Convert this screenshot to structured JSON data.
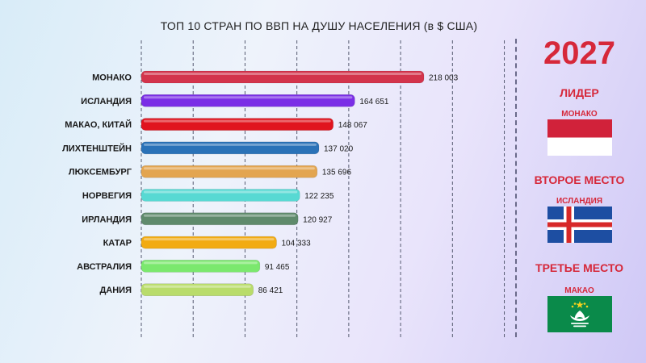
{
  "chart_data": {
    "type": "bar",
    "orientation": "horizontal",
    "title": "ТОП 10 СТРАН ПО ВВП НА ДУШУ НАСЕЛЕНИЯ (в $ США)",
    "categories": [
      "МОНАКО",
      "ИСЛАНДИЯ",
      "МАКАО, КИТАЙ",
      "ЛИХТЕНШТЕЙН",
      "ЛЮКСЕМБУРГ",
      "НОРВЕГИЯ",
      "ИРЛАНДИЯ",
      "КАТАР",
      "АВСТРАЛИЯ",
      "ДАНИЯ"
    ],
    "values": [
      218003,
      164651,
      148067,
      137020,
      135696,
      122235,
      120927,
      104333,
      91465,
      86421
    ],
    "value_labels": [
      "218 003",
      "164 651",
      "148 067",
      "137 020",
      "135 696",
      "122 235",
      "120 927",
      "104 333",
      "91 465",
      "86 421"
    ],
    "colors": [
      "#d3344c",
      "#7a2ee6",
      "#e0141e",
      "#2a72b8",
      "#e3a550",
      "#57d9d3",
      "#5f8a6c",
      "#f2ab12",
      "#7be86e",
      "#b9dc6b"
    ],
    "xlim": [
      0,
      300000
    ],
    "grid": true
  },
  "sidebar": {
    "year": "2027",
    "places": [
      {
        "heading": "ЛИДЕР",
        "country": "МОНАКО",
        "flag": "monaco-flag"
      },
      {
        "heading": "ВТОРОЕ МЕСТО",
        "country": "ИСЛАНДИЯ",
        "flag": "iceland-flag"
      },
      {
        "heading": "ТРЕТЬЕ МЕСТО",
        "country": "МАКАО",
        "flag": "macau-flag"
      }
    ]
  }
}
